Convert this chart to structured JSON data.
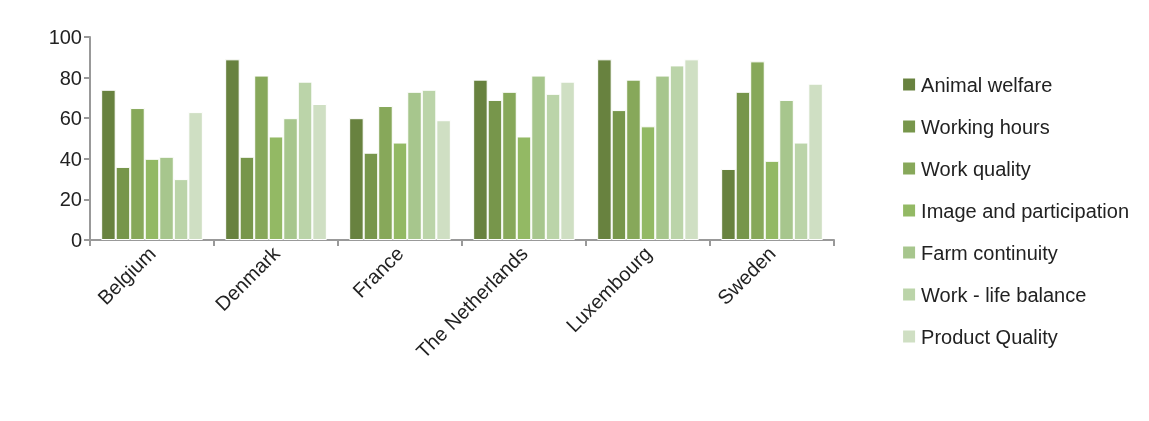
{
  "chart_data": {
    "type": "bar",
    "categories": [
      "Belgium",
      "Denmark",
      "France",
      "The Netherlands",
      "Luxembourg",
      "Sweden"
    ],
    "series": [
      {
        "name": "Animal welfare",
        "color": "#68823f",
        "values": [
          74,
          89,
          60,
          79,
          89,
          35
        ]
      },
      {
        "name": "Working hours",
        "color": "#77964b",
        "values": [
          36,
          41,
          43,
          69,
          64,
          73
        ]
      },
      {
        "name": "Work quality",
        "color": "#87a85a",
        "values": [
          65,
          81,
          66,
          73,
          79,
          88
        ]
      },
      {
        "name": "Image and participation",
        "color": "#93b964",
        "values": [
          40,
          51,
          48,
          51,
          56,
          39
        ]
      },
      {
        "name": "Farm continuity",
        "color": "#a7c68d",
        "values": [
          41,
          60,
          73,
          81,
          81,
          69
        ]
      },
      {
        "name": "Work - life balance",
        "color": "#bbd4a9",
        "values": [
          30,
          78,
          74,
          72,
          86,
          48
        ]
      },
      {
        "name": "Product Quality",
        "color": "#cfdfc3",
        "values": [
          63,
          67,
          59,
          78,
          89,
          77
        ]
      }
    ],
    "ylim": [
      0,
      100
    ],
    "yticks": [
      0,
      20,
      40,
      60,
      80,
      100
    ],
    "grid": false,
    "legend": "right"
  }
}
